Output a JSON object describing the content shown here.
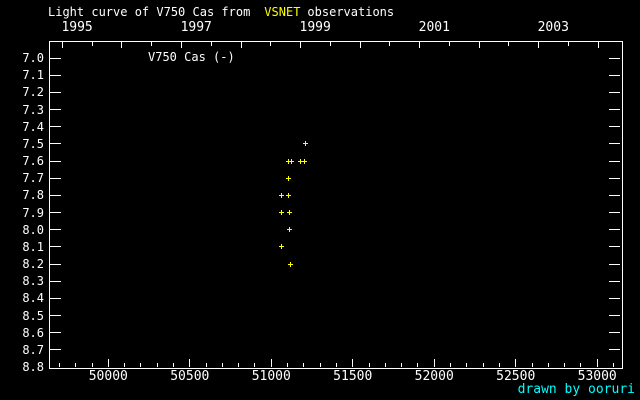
{
  "title": {
    "prefix": "Light curve of V750 Cas from",
    "highlight": "VSNET",
    "suffix": "observations"
  },
  "series_label": "V750 Cas (-)",
  "credit": "drawn by ooruri",
  "colors": {
    "background": "#000000",
    "foreground": "#ffffff",
    "highlight": "#ffff00",
    "points": "#ffff00",
    "credit": "#00ffff"
  },
  "chart_data": {
    "type": "scatter",
    "title": "Light curve of V750 Cas from VSNET observations",
    "legend": "none",
    "grid": false,
    "marker": "plus",
    "series": [
      {
        "name": "V750 Cas (-)",
        "color": "#ffff00",
        "points": [
          [
            51207,
            7.5
          ],
          [
            51104,
            7.6
          ],
          [
            51124,
            7.6
          ],
          [
            51179,
            7.6
          ],
          [
            51204,
            7.6
          ],
          [
            51106,
            7.7
          ],
          [
            51063,
            7.8
          ],
          [
            51108,
            7.8
          ],
          [
            51065,
            7.9
          ],
          [
            51112,
            7.9
          ],
          [
            51110,
            8.0
          ],
          [
            51063,
            8.1
          ],
          [
            51118,
            8.2
          ]
        ]
      }
    ],
    "x_axis": {
      "unit": "JD - 2400000",
      "range": [
        49636,
        53146
      ],
      "major_tick_labels": [
        "50000",
        "50500",
        "51000",
        "51500",
        "52000",
        "52500",
        "53000"
      ],
      "minor_start": 49700,
      "minor_end": 53100,
      "minor_step": 100
    },
    "y_axis": {
      "unit": "magnitude",
      "range": [
        6.9,
        8.8
      ],
      "inverted": true,
      "tick_labels": [
        "7.0",
        "7.1",
        "7.2",
        "7.3",
        "7.4",
        "7.5",
        "7.6",
        "7.7",
        "7.8",
        "7.9",
        "8.0",
        "8.1",
        "8.2",
        "8.3",
        "8.4",
        "8.5",
        "8.6",
        "8.7",
        "8.8"
      ]
    },
    "top_axis": {
      "unit": "year",
      "year_ticks": [
        {
          "label": "1995",
          "jd": 49718.5,
          "show_label": true
        },
        {
          "label": "1996",
          "jd": 50083.5,
          "show_label": false
        },
        {
          "label": "1997",
          "jd": 50449.5,
          "show_label": true
        },
        {
          "label": "1998",
          "jd": 50814.5,
          "show_label": false
        },
        {
          "label": "1999",
          "jd": 51179.5,
          "show_label": true
        },
        {
          "label": "2000",
          "jd": 51544.5,
          "show_label": false
        },
        {
          "label": "2001",
          "jd": 51910.5,
          "show_label": true
        },
        {
          "label": "2002",
          "jd": 52275.5,
          "show_label": false
        },
        {
          "label": "2003",
          "jd": 52640.5,
          "show_label": true
        },
        {
          "label": "2004",
          "jd": 53005.5,
          "show_label": false
        }
      ],
      "half_year_ticks": [
        49901,
        50266,
        50632,
        50997,
        51362,
        51727,
        52093,
        52458,
        52823
      ]
    }
  }
}
